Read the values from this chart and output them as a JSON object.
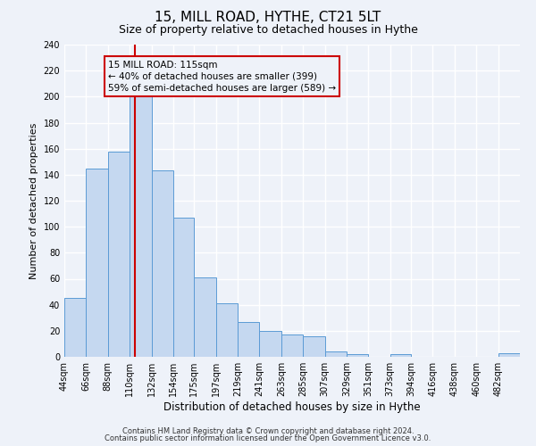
{
  "title": "15, MILL ROAD, HYTHE, CT21 5LT",
  "subtitle": "Size of property relative to detached houses in Hythe",
  "xlabel": "Distribution of detached houses by size in Hythe",
  "ylabel": "Number of detached properties",
  "bar_labels": [
    "44sqm",
    "66sqm",
    "88sqm",
    "110sqm",
    "132sqm",
    "154sqm",
    "175sqm",
    "197sqm",
    "219sqm",
    "241sqm",
    "263sqm",
    "285sqm",
    "307sqm",
    "329sqm",
    "351sqm",
    "373sqm",
    "394sqm",
    "416sqm",
    "438sqm",
    "460sqm",
    "482sqm"
  ],
  "bar_values": [
    45,
    145,
    158,
    201,
    143,
    107,
    61,
    41,
    27,
    20,
    17,
    16,
    4,
    2,
    0,
    2,
    0,
    0,
    0,
    0,
    3
  ],
  "bar_left_edges": [
    44,
    66,
    88,
    110,
    132,
    154,
    175,
    197,
    219,
    241,
    263,
    285,
    307,
    329,
    351,
    373,
    394,
    416,
    438,
    460,
    482
  ],
  "bar_widths": [
    22,
    22,
    22,
    22,
    22,
    21,
    22,
    22,
    22,
    22,
    22,
    22,
    22,
    22,
    22,
    21,
    22,
    22,
    22,
    22,
    22
  ],
  "bar_color": "#c5d8f0",
  "bar_edge_color": "#5b9bd5",
  "vline_x": 115,
  "vline_color": "#cc0000",
  "ylim": [
    0,
    240
  ],
  "yticks": [
    0,
    20,
    40,
    60,
    80,
    100,
    120,
    140,
    160,
    180,
    200,
    220,
    240
  ],
  "annotation_title": "15 MILL ROAD: 115sqm",
  "annotation_line1": "← 40% of detached houses are smaller (399)",
  "annotation_line2": "59% of semi-detached houses are larger (589) →",
  "annotation_box_color": "#cc0000",
  "footer1": "Contains HM Land Registry data © Crown copyright and database right 2024.",
  "footer2": "Contains public sector information licensed under the Open Government Licence v3.0.",
  "background_color": "#eef2f9",
  "grid_color": "#ffffff",
  "title_fontsize": 11,
  "subtitle_fontsize": 9,
  "ylabel_fontsize": 8,
  "xlabel_fontsize": 8.5,
  "tick_fontsize": 7,
  "ann_fontsize": 7.5,
  "footer_fontsize": 6
}
